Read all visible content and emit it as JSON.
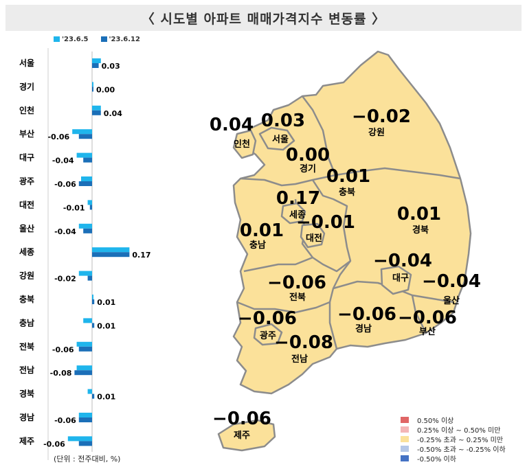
{
  "title": "〈 시도별 아파트 매매가격지수 변동률 〉",
  "unit_note": "(단위 : 전주대비, %)",
  "chart_data": {
    "type": "bar",
    "orientation": "horizontal",
    "categories": [
      "서울",
      "경기",
      "인천",
      "부산",
      "대구",
      "광주",
      "대전",
      "울산",
      "세종",
      "강원",
      "충북",
      "충남",
      "전북",
      "전남",
      "경북",
      "경남",
      "제주"
    ],
    "series": [
      {
        "name": "'23.6.5",
        "color": "#1fb5ec",
        "values": [
          0.04,
          0.0,
          0.04,
          -0.09,
          -0.07,
          -0.05,
          -0.02,
          -0.06,
          0.17,
          -0.06,
          0.0,
          -0.04,
          -0.07,
          -0.07,
          -0.02,
          -0.06,
          -0.11
        ]
      },
      {
        "name": "'23.6.12",
        "color": "#1b6fb8",
        "values": [
          0.03,
          0.0,
          0.04,
          -0.06,
          -0.04,
          -0.06,
          -0.01,
          -0.04,
          0.17,
          -0.02,
          0.01,
          0.01,
          -0.06,
          -0.08,
          0.01,
          -0.06,
          -0.06
        ]
      }
    ],
    "value_labels": [
      "0.03",
      "0.00",
      "0.04",
      "-0.06",
      "-0.04",
      "-0.06",
      "-0.01",
      "-0.04",
      "0.17",
      "-0.02",
      "0.01",
      "0.01",
      "-0.06",
      "-0.08",
      "0.01",
      "-0.06",
      "-0.06"
    ]
  },
  "map": {
    "regions": [
      {
        "name": "인천",
        "value": "0.04"
      },
      {
        "name": "서울",
        "value": "0.03"
      },
      {
        "name": "강원",
        "value": "−0.02"
      },
      {
        "name": "경기",
        "value": "0.00"
      },
      {
        "name": "충북",
        "value": "0.01"
      },
      {
        "name": "세종",
        "value": "0.17"
      },
      {
        "name": "충남",
        "value": "0.01"
      },
      {
        "name": "대전",
        "value": "−0.01"
      },
      {
        "name": "경북",
        "value": "0.01"
      },
      {
        "name": "대구",
        "value": "−0.04"
      },
      {
        "name": "울산",
        "value": "−0.04"
      },
      {
        "name": "전북",
        "value": "−0.06"
      },
      {
        "name": "광주",
        "value": "−0.06"
      },
      {
        "name": "경남",
        "value": "−0.06"
      },
      {
        "name": "부산",
        "value": "−0.06"
      },
      {
        "name": "전남",
        "value": "−0.08"
      },
      {
        "name": "제주",
        "value": "−0.06"
      }
    ],
    "fill_color": "#fbe19a",
    "border_color": "#8c8c8c"
  },
  "legend": [
    {
      "label": "0.50% 이상",
      "color": "#e06666"
    },
    {
      "label": "0.25% 이상 ~ 0.50% 미만",
      "color": "#f4b6b6"
    },
    {
      "label": "-0.25% 초과 ~ 0.25% 미만",
      "color": "#fbe19a"
    },
    {
      "label": "-0.50% 초과 ~ -0.25% 이하",
      "color": "#b4c7e7"
    },
    {
      "label": "-0.50% 이하",
      "color": "#4472c4"
    }
  ]
}
